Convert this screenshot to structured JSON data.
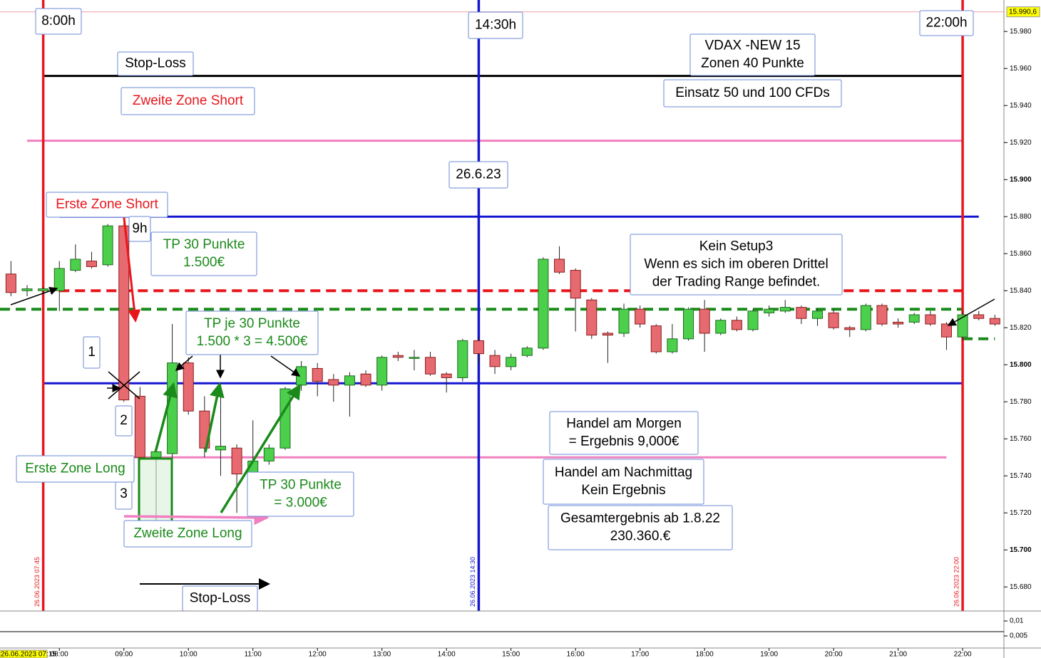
{
  "chart_data": {
    "type": "candlestick",
    "x": [
      7.25,
      7.5,
      7.75,
      8,
      8.25,
      8.5,
      8.75,
      9,
      9.25,
      9.5,
      9.75,
      10,
      10.25,
      10.5,
      10.75,
      11,
      11.25,
      11.5,
      11.75,
      12,
      12.25,
      12.5,
      12.75,
      13,
      13.25,
      13.5,
      13.75,
      14,
      14.25,
      14.5,
      14.75,
      15,
      15.25,
      15.5,
      15.75,
      16,
      16.25,
      16.5,
      16.75,
      17,
      17.25,
      17.5,
      17.75,
      18,
      18.25,
      18.5,
      18.75,
      19,
      19.25,
      19.5,
      19.75,
      20,
      20.25,
      20.5,
      20.75,
      21,
      21.25,
      21.5,
      21.75,
      22,
      22.25,
      22.5
    ],
    "open": [
      15849,
      15840,
      15840,
      15840,
      15851,
      15856,
      15854,
      15875,
      15783,
      15750,
      15752,
      15801,
      15775,
      15754,
      15755,
      15741,
      15748,
      15755,
      15789,
      15798,
      15792,
      15789,
      15795,
      15789,
      15805,
      15804,
      15804,
      15795,
      15793,
      15813,
      15805,
      15799,
      15805,
      15809,
      15857,
      15851,
      15835,
      15817,
      15817,
      15830,
      15821,
      15807,
      15814,
      15830,
      15817,
      15824,
      15819,
      15828,
      15829,
      15831,
      15825,
      15828,
      15820,
      15819,
      15832,
      15823,
      15823,
      15827,
      15822,
      15815,
      15827,
      15825
    ],
    "high": [
      15856,
      15843,
      15842,
      15856,
      15865,
      15861,
      15876,
      15877,
      15788,
      15754,
      15822,
      15804,
      15783,
      15790,
      15757,
      15770,
      15757,
      15788,
      15802,
      15801,
      15795,
      15796,
      15797,
      15805,
      15807,
      15808,
      15807,
      15796,
      15814,
      15815,
      15808,
      15806,
      15810,
      15858,
      15864,
      15852,
      15836,
      15818,
      15833,
      15832,
      15822,
      15822,
      15831,
      15835,
      15825,
      15826,
      15830,
      15832,
      15835,
      15832,
      15830,
      15830,
      15821,
      15833,
      15833,
      15825,
      15828,
      15829,
      15823,
      15829,
      15829,
      15827
    ],
    "low": [
      15837,
      15837,
      15839,
      15829,
      15850,
      15852,
      15853,
      15780,
      15748,
      15712,
      15748,
      15773,
      15750,
      15740,
      15720,
      15735,
      15746,
      15754,
      15786,
      15783,
      15780,
      15772,
      15788,
      15786,
      15802,
      15797,
      15794,
      15785,
      15791,
      15800,
      15795,
      15797,
      15804,
      15808,
      15849,
      15818,
      15814,
      15801,
      15815,
      15820,
      15806,
      15806,
      15813,
      15807,
      15816,
      15818,
      15818,
      15826,
      15828,
      15822,
      15821,
      15819,
      15815,
      15818,
      15821,
      15820,
      15822,
      15821,
      15808,
      15813,
      15824,
      15821
    ],
    "close": [
      15839,
      15841,
      15841,
      15852,
      15857,
      15853,
      15875,
      15781,
      15750,
      15753,
      15801,
      15775,
      15755,
      15756,
      15741,
      15748,
      15755,
      15787,
      15799,
      15791,
      15789,
      15794,
      15789,
      15804,
      15804,
      15804,
      15795,
      15793,
      15813,
      15806,
      15799,
      15804,
      15809,
      15857,
      15850,
      15836,
      15816,
      15816,
      15830,
      15822,
      15807,
      15814,
      15830,
      15817,
      15824,
      15819,
      15829,
      15830,
      15831,
      15825,
      15829,
      15820,
      15819,
      15832,
      15822,
      15822,
      15827,
      15822,
      15815,
      15827,
      15825,
      15822
    ],
    "up_color": "#4cd04c",
    "down_color": "#e66a70",
    "xlim": [
      7.08,
      22.64
    ],
    "ylim": [
      15667,
      15997
    ],
    "xticks": [
      {
        "value": 8,
        "label": "08:00"
      },
      {
        "value": 9,
        "label": "09:00"
      },
      {
        "value": 10,
        "label": "10:00"
      },
      {
        "value": 11,
        "label": "11:00"
      },
      {
        "value": 12,
        "label": "12:00"
      },
      {
        "value": 13,
        "label": "13:00"
      },
      {
        "value": 14,
        "label": "14:00"
      },
      {
        "value": 15,
        "label": "15:00"
      },
      {
        "value": 16,
        "label": "16:00"
      },
      {
        "value": 17,
        "label": "17:00"
      },
      {
        "value": 18,
        "label": "18:00"
      },
      {
        "value": 19,
        "label": "19:00"
      },
      {
        "value": 20,
        "label": "20:00"
      },
      {
        "value": 21,
        "label": "21:00"
      },
      {
        "value": 22,
        "label": "22:00"
      }
    ],
    "yticks": [
      {
        "value": 15680,
        "label": "15.680"
      },
      {
        "value": 15700,
        "label": "15.700"
      },
      {
        "value": 15720,
        "label": "15.720"
      },
      {
        "value": 15740,
        "label": "15.740"
      },
      {
        "value": 15760,
        "label": "15.760"
      },
      {
        "value": 15780,
        "label": "15.780"
      },
      {
        "value": 15800,
        "label": "15.800"
      },
      {
        "value": 15820,
        "label": "15.820"
      },
      {
        "value": 15840,
        "label": "15.840"
      },
      {
        "value": 15860,
        "label": "15.860"
      },
      {
        "value": 15880,
        "label": "15.880"
      },
      {
        "value": 15900,
        "label": "15.900"
      },
      {
        "value": 15920,
        "label": "15.920"
      },
      {
        "value": 15940,
        "label": "15.940"
      },
      {
        "value": 15960,
        "label": "15.960"
      },
      {
        "value": 15980,
        "label": "15.980"
      }
    ],
    "last_price": {
      "value": 15990.6,
      "label": "15.990,6"
    },
    "cursor_time_label": "26.06.2023 07:15",
    "indicator_yticks": [
      {
        "value": 0.01,
        "label": "0,01"
      },
      {
        "value": 0.005,
        "label": "0,005"
      }
    ],
    "levels": [
      {
        "value": 15956,
        "from": 7.75,
        "to": 22,
        "color": "#000000",
        "dashed": false
      },
      {
        "value": 15921,
        "from": 7.5,
        "to": 22,
        "color": "#f080c0",
        "dashed": false
      },
      {
        "value": 15880,
        "from": 8,
        "to": 22.25,
        "color": "#1515d0",
        "dashed": false
      },
      {
        "value": 15840,
        "from": 8,
        "to": 22,
        "color": "#e8161c",
        "dashed": true
      },
      {
        "value": 15830,
        "from": 7.08,
        "to": 22,
        "color": "#1a8a1a",
        "dashed": true
      },
      {
        "value": 15790,
        "from": 7.75,
        "to": 22,
        "color": "#1515d0",
        "dashed": false
      },
      {
        "value": 15750,
        "from": 7.5,
        "to": 21.75,
        "color": "#f080c0",
        "dashed": false
      },
      {
        "value": 15814,
        "from": 22,
        "to": 22.5,
        "color": "#1a8a1a",
        "dashed": true
      }
    ],
    "verticals": [
      {
        "x": 7.75,
        "label": "26.06.2023 07:45",
        "color": "#e8161c"
      },
      {
        "x": 14.5,
        "label": "26.06.2023 14:30",
        "color": "#1515d0"
      },
      {
        "x": 22,
        "label": "26.06.2023 22:00",
        "color": "#e8161c"
      }
    ],
    "annotations": [
      {
        "lines": [
          "8:00h"
        ],
        "color": "#000000"
      },
      {
        "lines": [
          "14:30h"
        ],
        "color": "#000000"
      },
      {
        "lines": [
          "22:00h"
        ],
        "color": "#000000"
      },
      {
        "lines": [
          "Stop-Loss"
        ],
        "color": "#000000"
      },
      {
        "lines": [
          "Zweite Zone Short"
        ],
        "color": "#e8161c"
      },
      {
        "lines": [
          "VDAX -NEW 15",
          "Zonen 40 Punkte"
        ],
        "color": "#000000"
      },
      {
        "lines": [
          "Einsatz 50 und 100 CFDs"
        ],
        "color": "#000000"
      },
      {
        "lines": [
          "26.6.23"
        ],
        "color": "#000000"
      },
      {
        "lines": [
          "Erste Zone Short"
        ],
        "color": "#e8161c"
      },
      {
        "lines": [
          "9h"
        ],
        "color": "#000000"
      },
      {
        "lines": [
          "TP   30 Punkte",
          "1.500€"
        ],
        "color": "#1a8a1a"
      },
      {
        "lines": [
          "Kein Setup3",
          "Wenn es sich im oberen Drittel",
          "der Trading Range befindet."
        ],
        "color": "#000000"
      },
      {
        "lines": [
          "TP  je  30 Punkte",
          "1.500 * 3 = 4.500€"
        ],
        "color": "#1a8a1a"
      },
      {
        "lines": [
          "1"
        ],
        "color": "#000000"
      },
      {
        "lines": [
          "2"
        ],
        "color": "#000000"
      },
      {
        "lines": [
          "3"
        ],
        "color": "#000000"
      },
      {
        "lines": [
          "Erste Zone Long"
        ],
        "color": "#1a8a1a"
      },
      {
        "lines": [
          "Handel am Morgen",
          "= Ergebnis 9,000€"
        ],
        "color": "#000000"
      },
      {
        "lines": [
          "Handel am Nachmittag",
          "Kein Ergebnis"
        ],
        "color": "#000000"
      },
      {
        "lines": [
          "TP   30 Punkte",
          "= 3.000€"
        ],
        "color": "#1a8a1a"
      },
      {
        "lines": [
          "Gesamtergebnis ab 1.8.22",
          "230.360.€"
        ],
        "color": "#000000"
      },
      {
        "lines": [
          "Zweite Zone Long"
        ],
        "color": "#1a8a1a"
      },
      {
        "lines": [
          "Stop-Loss"
        ],
        "color": "#000000"
      }
    ]
  }
}
